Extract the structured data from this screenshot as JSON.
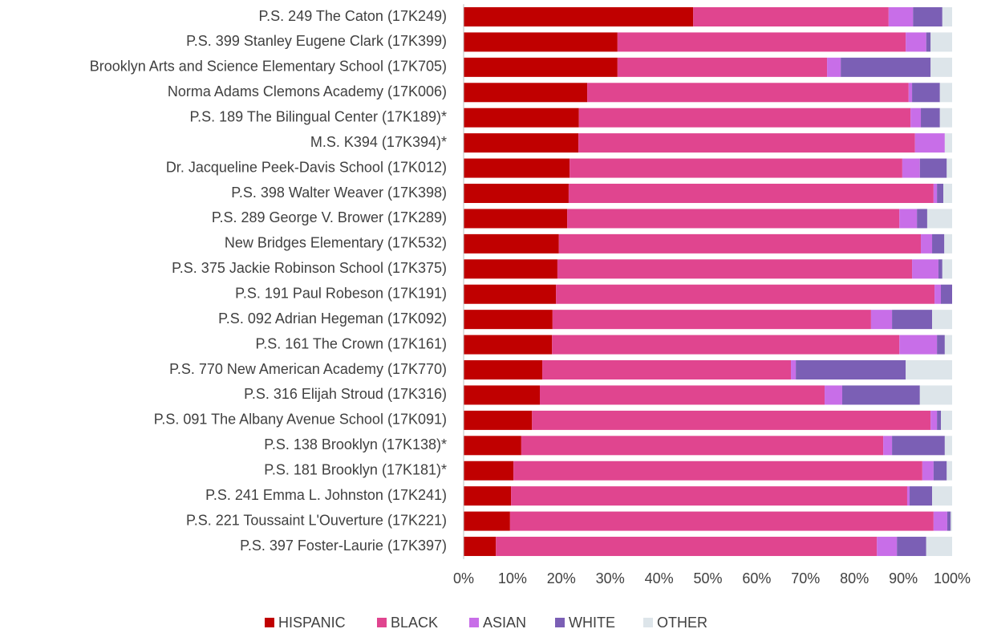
{
  "chart_data": {
    "type": "stacked-barh",
    "categories": [
      "P.S. 249 The Caton (17K249)",
      "P.S. 399 Stanley Eugene Clark (17K399)",
      "Brooklyn Arts and Science Elementary School (17K705)",
      "Norma Adams Clemons Academy (17K006)",
      "P.S. 189 The Bilingual Center (17K189)*",
      "M.S. K394 (17K394)*",
      "Dr. Jacqueline Peek-Davis School (17K012)",
      "P.S. 398 Walter Weaver (17K398)",
      "P.S. 289 George V. Brower (17K289)",
      "New Bridges Elementary (17K532)",
      "P.S. 375 Jackie Robinson School (17K375)",
      "P.S. 191 Paul Robeson (17K191)",
      "P.S. 092 Adrian Hegeman (17K092)",
      "P.S. 161 The Crown (17K161)",
      "P.S. 770 New American Academy (17K770)",
      "P.S. 316 Elijah Stroud (17K316)",
      "P.S. 091 The Albany Avenue School (17K091)",
      "P.S. 138 Brooklyn (17K138)*",
      "P.S. 181 Brooklyn (17K181)*",
      "P.S. 241 Emma L. Johnston (17K241)",
      "P.S. 221 Toussaint L'Ouverture (17K221)",
      "P.S. 397 Foster-Laurie (17K397)"
    ],
    "series": [
      {
        "name": "HISPANIC",
        "color": "#c00000",
        "values": [
          47,
          31.5,
          31.5,
          25.3,
          23.6,
          23.5,
          21.7,
          21.5,
          21.2,
          19.5,
          19.2,
          18.9,
          18.2,
          18.1,
          16.1,
          15.6,
          14,
          11.8,
          10.2,
          9.7,
          9.5,
          6.6
        ]
      },
      {
        "name": "BLACK",
        "color": "#e0458f",
        "values": [
          40,
          59,
          42.9,
          65.8,
          67.9,
          68.9,
          68.1,
          74.7,
          68,
          74.1,
          72.6,
          77.5,
          65.2,
          71.1,
          50.9,
          58.3,
          81.6,
          74.1,
          83.7,
          81.1,
          86.7,
          78
        ]
      },
      {
        "name": "ASIAN",
        "color": "#c86ee8",
        "values": [
          5,
          4.2,
          2.8,
          0.7,
          2.1,
          6.1,
          3.6,
          0.7,
          3.6,
          2.3,
          5.4,
          1.3,
          4.3,
          7.7,
          1,
          3.6,
          1.3,
          1.8,
          2.3,
          0.5,
          2.8,
          4.1
        ]
      },
      {
        "name": "WHITE",
        "color": "#7b5fb5",
        "values": [
          6,
          0.9,
          18.4,
          5.7,
          3.9,
          0,
          5.5,
          1.3,
          2.1,
          2.5,
          0.8,
          2.3,
          8.2,
          1.6,
          22.5,
          15.9,
          0.8,
          10.8,
          2.7,
          4.6,
          0.7,
          6
        ]
      },
      {
        "name": "OTHER",
        "color": "#dde5ea",
        "values": [
          2,
          4.4,
          4.4,
          2.5,
          2.5,
          1.5,
          1.1,
          1.8,
          5.1,
          1.6,
          2,
          0,
          4.1,
          1.5,
          9.5,
          6.6,
          2.3,
          1.5,
          1.1,
          4.1,
          0.3,
          5.3
        ]
      }
    ],
    "xlim": [
      0,
      100
    ],
    "xticks": [
      {
        "value": 0,
        "label": "0%"
      },
      {
        "value": 10,
        "label": "10%"
      },
      {
        "value": 20,
        "label": "20%"
      },
      {
        "value": 30,
        "label": "30%"
      },
      {
        "value": 40,
        "label": "40%"
      },
      {
        "value": 50,
        "label": "50%"
      },
      {
        "value": 60,
        "label": "60%"
      },
      {
        "value": 70,
        "label": "70%"
      },
      {
        "value": 80,
        "label": "80%"
      },
      {
        "value": 90,
        "label": "90%"
      },
      {
        "value": 100,
        "label": "100%"
      }
    ],
    "legend": "bottom"
  }
}
